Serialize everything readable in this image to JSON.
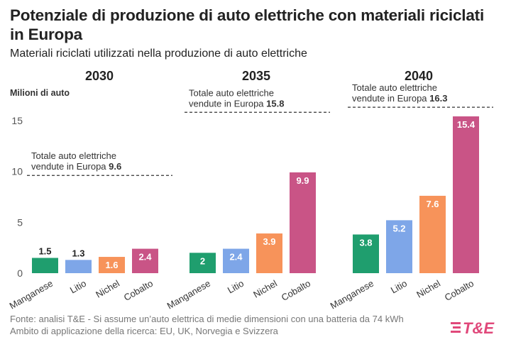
{
  "title": "Potenziale di produzione di auto elettriche con materiali riciclati in Europa",
  "subtitle": "Materiali riciclati utilizzati nella produzione di auto elettriche",
  "footer": {
    "source": "Fonte: analisi T&E - Si assume un’auto elettrica di medie dimensioni con una batteria da 74 kWh",
    "scope": "Ambito di applicazione della ricerca: EU, UK, Norvegia e Svizzera"
  },
  "logo": {
    "text": "T&E",
    "color": "#e0487a"
  },
  "chart_data": {
    "type": "bar",
    "ylabel": "Milioni di auto",
    "ylim": [
      0,
      17
    ],
    "yticks": [
      0,
      5,
      10,
      15
    ],
    "grid": false,
    "categories": [
      "Manganese",
      "Litio",
      "Nichel",
      "Cobalto"
    ],
    "colors": [
      "#1f9e6e",
      "#7ea6e8",
      "#f7935a",
      "#c95486"
    ],
    "panels": [
      {
        "title": "2030",
        "values": [
          1.5,
          1.3,
          1.6,
          2.4
        ],
        "reference": {
          "line1": "Totale auto elettriche",
          "line2_prefix": "vendute in Europa",
          "value": 9.6
        }
      },
      {
        "title": "2035",
        "values": [
          2,
          2.4,
          3.9,
          9.9
        ],
        "reference": {
          "line1": "Totale auto elettriche",
          "line2_prefix": "vendute in Europa",
          "value": 15.8
        }
      },
      {
        "title": "2040",
        "values": [
          3.8,
          5.2,
          7.6,
          15.4
        ],
        "reference": {
          "line1": "Totale auto elettriche",
          "line2_prefix": "vendute in Europa",
          "value": 16.3
        }
      }
    ]
  }
}
